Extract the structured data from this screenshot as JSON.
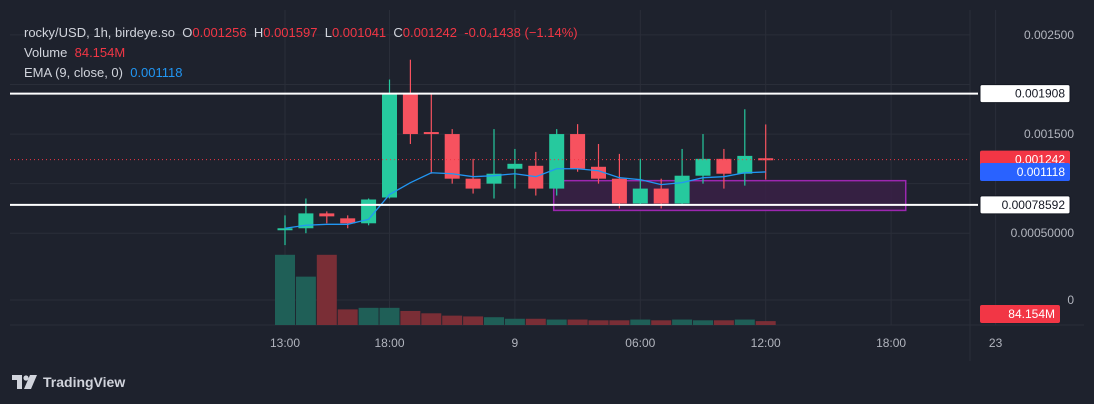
{
  "legend": {
    "symbol": "rocky/USD, 1h, birdeye.so",
    "o_label": "O",
    "o_value": "0.001256",
    "h_label": "H",
    "h_value": "0.001597",
    "l_label": "L",
    "l_value": "0.001041",
    "c_label": "C",
    "c_value": "0.001242",
    "change": "-0.0₄1438 (−1.14%)",
    "volume_label": "Volume",
    "volume_value": "84.154M",
    "ema_label": "EMA (9, close, 0)",
    "ema_value": "0.001118"
  },
  "branding": {
    "name": "TradingView"
  },
  "colors": {
    "up": "#22ab94",
    "up_body": "#26c99e",
    "down": "#f23645",
    "down_body": "#f7525f",
    "vol_up": "#1f5f57",
    "vol_down": "#7a2e36",
    "ema": "#2196f3",
    "box": "#9c27b0",
    "box_fill": "#3a2047",
    "grid": "#2a2e39",
    "level": "#ffffff",
    "price_tag": "#f23645",
    "ema_tag": "#2962ff"
  },
  "chart_data": {
    "type": "candlestick",
    "title": "rocky/USD, 1h, birdeye.so",
    "y_axis": {
      "ticks": [
        0.0025,
        0.0015,
        0.0005,
        0
      ],
      "tick_labels": [
        "0.002500",
        "0.001500",
        "0.00050000",
        "0"
      ],
      "range": [
        0.00025,
        0.0026
      ]
    },
    "x_axis": {
      "ticks": [
        {
          "index": 0,
          "label": "13:00"
        },
        {
          "index": 5,
          "label": "18:00"
        },
        {
          "index": 11,
          "label": "9"
        },
        {
          "index": 17,
          "label": "06:00"
        },
        {
          "index": 23,
          "label": "12:00"
        },
        {
          "index": 29,
          "label": "18:00"
        },
        {
          "index": 34,
          "label": "23"
        }
      ]
    },
    "candles": [
      {
        "o": 0.00053,
        "h": 0.00068,
        "l": 0.00038,
        "c": 0.00055
      },
      {
        "o": 0.00055,
        "h": 0.00085,
        "l": 0.0005,
        "c": 0.0007
      },
      {
        "o": 0.0007,
        "h": 0.00072,
        "l": 0.0006,
        "c": 0.00067
      },
      {
        "o": 0.00065,
        "h": 0.00068,
        "l": 0.00055,
        "c": 0.0006
      },
      {
        "o": 0.0006,
        "h": 0.00085,
        "l": 0.00058,
        "c": 0.00084
      },
      {
        "o": 0.00086,
        "h": 0.00205,
        "l": 0.00085,
        "c": 0.0019
      },
      {
        "o": 0.0019,
        "h": 0.00225,
        "l": 0.0014,
        "c": 0.0015
      },
      {
        "o": 0.00152,
        "h": 0.0019,
        "l": 0.0011,
        "c": 0.0015
      },
      {
        "o": 0.0015,
        "h": 0.00155,
        "l": 0.001,
        "c": 0.00105
      },
      {
        "o": 0.00105,
        "h": 0.00125,
        "l": 0.0009,
        "c": 0.00095
      },
      {
        "o": 0.001,
        "h": 0.00155,
        "l": 0.00085,
        "c": 0.0011
      },
      {
        "o": 0.00115,
        "h": 0.00135,
        "l": 0.00095,
        "c": 0.0012
      },
      {
        "o": 0.00118,
        "h": 0.00132,
        "l": 0.00088,
        "c": 0.00095
      },
      {
        "o": 0.00095,
        "h": 0.00155,
        "l": 0.00088,
        "c": 0.0015
      },
      {
        "o": 0.0015,
        "h": 0.0016,
        "l": 0.00112,
        "c": 0.00115
      },
      {
        "o": 0.00117,
        "h": 0.0014,
        "l": 0.001,
        "c": 0.00105
      },
      {
        "o": 0.00105,
        "h": 0.0013,
        "l": 0.00075,
        "c": 0.0008
      },
      {
        "o": 0.0008,
        "h": 0.00125,
        "l": 0.00078,
        "c": 0.00095
      },
      {
        "o": 0.00095,
        "h": 0.00105,
        "l": 0.00075,
        "c": 0.0008
      },
      {
        "o": 0.0008,
        "h": 0.00135,
        "l": 0.00078,
        "c": 0.00108
      },
      {
        "o": 0.00108,
        "h": 0.0015,
        "l": 0.001,
        "c": 0.00125
      },
      {
        "o": 0.00125,
        "h": 0.00135,
        "l": 0.00095,
        "c": 0.0011
      },
      {
        "o": 0.0011,
        "h": 0.00175,
        "l": 0.00098,
        "c": 0.00128
      },
      {
        "o": 0.001256,
        "h": 0.001597,
        "l": 0.001041,
        "c": 0.001242
      }
    ],
    "ema": [
      0.00055,
      0.00058,
      0.00059,
      0.00059,
      0.00064,
      0.00089,
      0.00101,
      0.00111,
      0.0011,
      0.00107,
      0.00108,
      0.0011,
      0.00107,
      0.00115,
      0.00115,
      0.00113,
      0.00106,
      0.00104,
      0.00099,
      0.00101,
      0.00106,
      0.00107,
      0.00111,
      0.001118
    ],
    "volume_relative": [
      0.9,
      0.62,
      0.9,
      0.2,
      0.22,
      0.22,
      0.18,
      0.15,
      0.12,
      0.11,
      0.1,
      0.08,
      0.08,
      0.07,
      0.07,
      0.06,
      0.06,
      0.07,
      0.06,
      0.07,
      0.06,
      0.06,
      0.07,
      0.05
    ],
    "volume_last": "84.154M",
    "horizontal_levels": [
      {
        "value": 0.001908,
        "label": "0.001908"
      },
      {
        "value": 0.00078592,
        "label": "0.00078592"
      }
    ],
    "zone": {
      "start_index": 13,
      "end_index": 29.7,
      "high": 0.00103,
      "low": 0.00073
    },
    "last_price": {
      "value": 0.001242,
      "label": "0.001242"
    },
    "ema_last": {
      "value": 0.001118,
      "label": "0.001118"
    }
  }
}
